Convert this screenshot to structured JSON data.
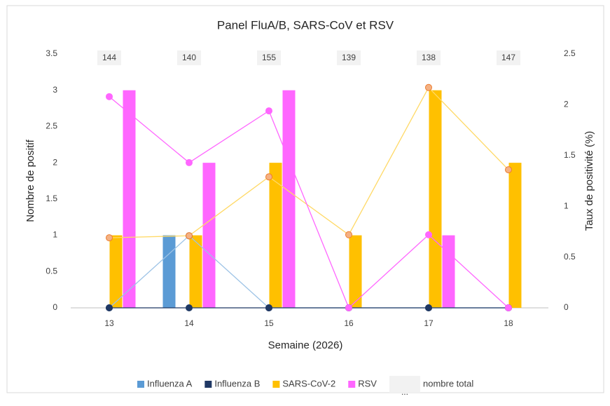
{
  "chart_data": {
    "type": "bar",
    "title": "Panel FluA/B, SARS-CoV et RSV",
    "x_label": "Semaine (2026)",
    "y_label": "Nombre de positif",
    "y2_label": "Taux de positivité (%)",
    "categories": [
      "13",
      "14",
      "15",
      "16",
      "17",
      "18"
    ],
    "series": [
      {
        "name": "Influenza A",
        "color": "#5b9bd5",
        "values": [
          0,
          1,
          0,
          0,
          0,
          0
        ]
      },
      {
        "name": "Influenza B",
        "color": "#1f3864",
        "values": [
          0,
          0,
          0,
          0,
          0,
          0
        ]
      },
      {
        "name": "SARS-CoV-2",
        "color": "#ffc000",
        "values": [
          1,
          1,
          2,
          1,
          3,
          2
        ]
      },
      {
        "name": "RSV",
        "color": "#ff66ff",
        "values": [
          3,
          2,
          3,
          0,
          1,
          0
        ]
      }
    ],
    "line_series": [
      {
        "type": "line",
        "axis": "y2",
        "color": "#9dc3e6",
        "marker_color": "#1f3864",
        "values": [
          0,
          0.71,
          0,
          0,
          0,
          0
        ]
      },
      {
        "type": "line",
        "axis": "y2",
        "color": "#1f3864",
        "marker_color": "#1f3864",
        "values": [
          0,
          0,
          0,
          0,
          0,
          0
        ]
      },
      {
        "type": "line",
        "axis": "y2",
        "color": "#ffd966",
        "marker_color": "#f4b183",
        "values": [
          0.69,
          0.71,
          1.29,
          0.72,
          2.17,
          1.36
        ]
      },
      {
        "type": "line",
        "axis": "y2",
        "color": "#ff66ff",
        "marker_color": "#ff66ff",
        "values": [
          2.08,
          1.43,
          1.94,
          0,
          0.72,
          0
        ]
      }
    ],
    "totals": [
      144,
      140,
      155,
      139,
      138,
      147
    ],
    "totals_legend": "nombre total",
    "totals_legend_symbol": "...",
    "ylim": [
      0,
      3.5
    ],
    "yticks": [
      0,
      0.5,
      1,
      1.5,
      2,
      2.5,
      3,
      3.5
    ],
    "y2lim": [
      0,
      2.5
    ],
    "y2ticks": [
      0,
      0.5,
      1,
      1.5,
      2,
      2.5
    ],
    "grid": false,
    "legend": "bottom"
  }
}
